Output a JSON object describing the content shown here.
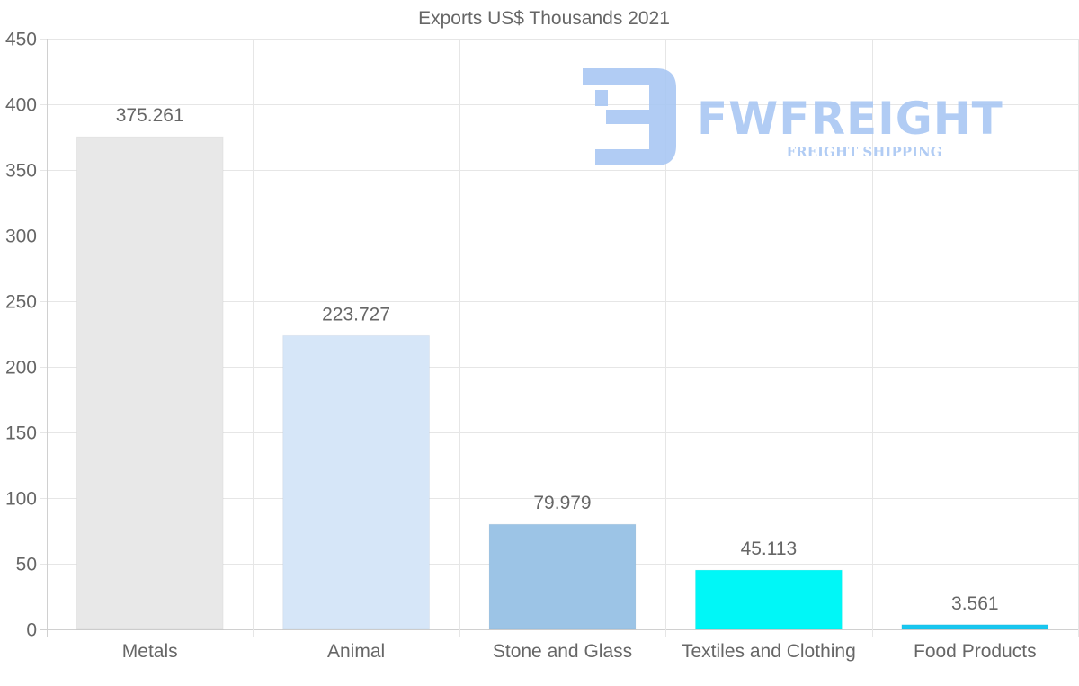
{
  "chart_data": {
    "type": "bar",
    "title": "Exports US$ Thousands 2021",
    "categories": [
      "Metals",
      "Animal",
      "Stone and Glass",
      "Textiles and Clothing",
      "Food Products"
    ],
    "values": [
      375.261,
      223.727,
      79.979,
      45.113,
      3.561
    ],
    "value_labels": [
      "375.261",
      "223.727",
      "79.979",
      "45.113",
      "3.561"
    ],
    "bar_colors": [
      "#e8e8e8",
      "#d6e6f8",
      "#9cc4e6",
      "#00f7f7",
      "#18c7f0"
    ],
    "ylim": [
      0,
      450
    ],
    "y_ticks": [
      0,
      50,
      100,
      150,
      200,
      250,
      300,
      350,
      400,
      450
    ],
    "xlabel": "",
    "ylabel": "",
    "grid": true,
    "legend": "none"
  },
  "watermark": {
    "brand": "FWFREIGHT",
    "tagline": "FREIGHT SHIPPING",
    "color": "#a9c7f3",
    "icon": "fw-logo-icon"
  },
  "colors": {
    "text": "#666666",
    "grid": "#e6e6e6",
    "axis": "#d0d0d0"
  }
}
